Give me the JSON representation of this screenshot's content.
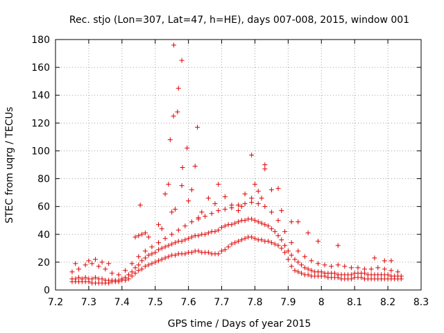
{
  "chart_data": {
    "type": "scatter",
    "title": "Rec. stjo (Lon=307, Lat=47, h=HE), days 007-008, 2015, window 001",
    "xlabel": "GPS time / Days of year 2015",
    "ylabel": "STEC from uqrg / TECUs",
    "xlim": [
      7.2,
      8.3
    ],
    "ylim": [
      0,
      180
    ],
    "xticks": [
      "7.2",
      "7.3",
      "7.4",
      "7.5",
      "7.6",
      "7.7",
      "7.8",
      "7.9",
      "8",
      "8.1",
      "8.2",
      "8.3"
    ],
    "yticks": [
      "0",
      "20",
      "40",
      "60",
      "80",
      "100",
      "120",
      "140",
      "160",
      "180"
    ],
    "grid": true,
    "marker": "plus",
    "color": "#dd0000",
    "series": [
      {
        "points": [
          [
            7.25,
            6
          ],
          [
            7.26,
            6
          ],
          [
            7.27,
            6
          ],
          [
            7.28,
            6
          ],
          [
            7.29,
            6
          ],
          [
            7.3,
            6
          ],
          [
            7.31,
            5
          ],
          [
            7.32,
            5
          ],
          [
            7.33,
            5
          ],
          [
            7.34,
            5
          ],
          [
            7.35,
            5
          ],
          [
            7.36,
            5
          ],
          [
            7.37,
            6
          ],
          [
            7.38,
            6
          ],
          [
            7.39,
            6
          ],
          [
            7.4,
            7
          ],
          [
            7.41,
            7
          ],
          [
            7.42,
            8
          ],
          [
            7.43,
            10
          ],
          [
            7.44,
            12
          ],
          [
            7.45,
            14
          ],
          [
            7.46,
            15
          ],
          [
            7.47,
            17
          ],
          [
            7.48,
            18
          ],
          [
            7.49,
            19
          ],
          [
            7.5,
            20
          ],
          [
            7.51,
            21
          ],
          [
            7.52,
            22
          ],
          [
            7.53,
            23
          ],
          [
            7.54,
            24
          ],
          [
            7.55,
            25
          ],
          [
            7.56,
            25
          ],
          [
            7.57,
            26
          ],
          [
            7.58,
            26
          ],
          [
            7.59,
            26
          ],
          [
            7.6,
            27
          ],
          [
            7.61,
            27
          ],
          [
            7.62,
            28
          ],
          [
            7.63,
            28
          ],
          [
            7.64,
            27
          ],
          [
            7.65,
            27
          ],
          [
            7.66,
            27
          ],
          [
            7.67,
            26
          ],
          [
            7.68,
            26
          ],
          [
            7.69,
            26
          ],
          [
            7.7,
            28
          ],
          [
            7.71,
            29
          ],
          [
            7.72,
            31
          ],
          [
            7.73,
            33
          ],
          [
            7.74,
            34
          ],
          [
            7.75,
            35
          ],
          [
            7.76,
            36
          ],
          [
            7.77,
            37
          ],
          [
            7.78,
            38
          ],
          [
            7.79,
            38
          ],
          [
            7.8,
            37
          ],
          [
            7.81,
            36
          ],
          [
            7.82,
            36
          ],
          [
            7.83,
            35
          ],
          [
            7.84,
            35
          ],
          [
            7.85,
            34
          ],
          [
            7.86,
            33
          ],
          [
            7.87,
            32
          ],
          [
            7.88,
            30
          ],
          [
            7.89,
            27
          ],
          [
            7.9,
            22
          ],
          [
            7.91,
            17
          ],
          [
            7.92,
            14
          ],
          [
            7.93,
            13
          ],
          [
            7.94,
            12
          ],
          [
            7.95,
            11
          ],
          [
            7.96,
            11
          ],
          [
            7.97,
            10
          ],
          [
            7.98,
            10
          ],
          [
            7.99,
            10
          ],
          [
            8.0,
            10
          ],
          [
            8.01,
            10
          ],
          [
            8.02,
            9
          ],
          [
            8.03,
            9
          ],
          [
            8.04,
            9
          ],
          [
            8.05,
            9
          ],
          [
            8.06,
            8
          ],
          [
            8.07,
            8
          ],
          [
            8.08,
            8
          ],
          [
            8.09,
            8
          ],
          [
            8.1,
            9
          ],
          [
            8.11,
            9
          ],
          [
            8.12,
            9
          ],
          [
            8.13,
            8
          ],
          [
            8.14,
            8
          ],
          [
            8.15,
            8
          ],
          [
            8.16,
            8
          ],
          [
            8.17,
            8
          ],
          [
            8.18,
            8
          ],
          [
            8.19,
            8
          ],
          [
            8.2,
            8
          ],
          [
            8.21,
            8
          ],
          [
            8.22,
            8
          ],
          [
            8.23,
            8
          ],
          [
            8.24,
            8
          ]
        ]
      },
      {
        "points": [
          [
            7.25,
            8
          ],
          [
            7.26,
            8
          ],
          [
            7.27,
            9
          ],
          [
            7.28,
            8
          ],
          [
            7.29,
            9
          ],
          [
            7.3,
            8
          ],
          [
            7.31,
            8
          ],
          [
            7.32,
            9
          ],
          [
            7.33,
            8
          ],
          [
            7.34,
            8
          ],
          [
            7.35,
            7
          ],
          [
            7.36,
            7
          ],
          [
            7.37,
            7
          ],
          [
            7.38,
            7
          ],
          [
            7.39,
            7
          ],
          [
            7.4,
            8
          ],
          [
            7.41,
            9
          ],
          [
            7.42,
            11
          ],
          [
            7.43,
            13
          ],
          [
            7.44,
            16
          ],
          [
            7.45,
            18
          ],
          [
            7.46,
            21
          ],
          [
            7.47,
            23
          ],
          [
            7.48,
            25
          ],
          [
            7.49,
            26
          ],
          [
            7.5,
            27
          ],
          [
            7.51,
            29
          ],
          [
            7.52,
            30
          ],
          [
            7.53,
            31
          ],
          [
            7.54,
            32
          ],
          [
            7.55,
            33
          ],
          [
            7.56,
            34
          ],
          [
            7.57,
            35
          ],
          [
            7.58,
            35
          ],
          [
            7.59,
            36
          ],
          [
            7.6,
            37
          ],
          [
            7.61,
            38
          ],
          [
            7.62,
            39
          ],
          [
            7.63,
            39
          ],
          [
            7.64,
            40
          ],
          [
            7.65,
            40
          ],
          [
            7.66,
            41
          ],
          [
            7.67,
            42
          ],
          [
            7.68,
            42
          ],
          [
            7.69,
            43
          ],
          [
            7.7,
            45
          ],
          [
            7.71,
            46
          ],
          [
            7.72,
            47
          ],
          [
            7.73,
            47
          ],
          [
            7.74,
            48
          ],
          [
            7.75,
            49
          ],
          [
            7.76,
            50
          ],
          [
            7.77,
            50
          ],
          [
            7.78,
            51
          ],
          [
            7.79,
            51
          ],
          [
            7.8,
            50
          ],
          [
            7.81,
            49
          ],
          [
            7.82,
            48
          ],
          [
            7.83,
            47
          ],
          [
            7.84,
            46
          ],
          [
            7.85,
            44
          ],
          [
            7.86,
            42
          ],
          [
            7.87,
            39
          ],
          [
            7.88,
            36
          ],
          [
            7.89,
            32
          ],
          [
            7.9,
            28
          ],
          [
            7.91,
            25
          ],
          [
            7.92,
            22
          ],
          [
            7.93,
            20
          ],
          [
            7.94,
            18
          ],
          [
            7.95,
            16
          ],
          [
            7.96,
            15
          ],
          [
            7.97,
            14
          ],
          [
            7.98,
            13
          ],
          [
            7.99,
            13
          ],
          [
            8.0,
            13
          ],
          [
            8.01,
            12
          ],
          [
            8.02,
            12
          ],
          [
            8.03,
            12
          ],
          [
            8.04,
            12
          ],
          [
            8.05,
            11
          ],
          [
            8.06,
            11
          ],
          [
            8.07,
            11
          ],
          [
            8.08,
            11
          ],
          [
            8.09,
            11
          ],
          [
            8.1,
            12
          ],
          [
            8.11,
            12
          ],
          [
            8.12,
            12
          ],
          [
            8.13,
            12
          ],
          [
            8.14,
            11
          ],
          [
            8.15,
            11
          ],
          [
            8.16,
            11
          ],
          [
            8.17,
            11
          ],
          [
            8.18,
            11
          ],
          [
            8.19,
            11
          ],
          [
            8.2,
            11
          ],
          [
            8.21,
            10
          ],
          [
            8.22,
            10
          ],
          [
            8.23,
            10
          ],
          [
            8.24,
            10
          ]
        ]
      },
      {
        "points": [
          [
            7.25,
            13
          ],
          [
            7.27,
            15
          ],
          [
            7.29,
            18
          ],
          [
            7.31,
            19
          ],
          [
            7.33,
            17
          ],
          [
            7.35,
            15
          ],
          [
            7.37,
            12
          ],
          [
            7.39,
            11
          ],
          [
            7.41,
            14
          ],
          [
            7.43,
            19
          ],
          [
            7.45,
            24
          ],
          [
            7.47,
            28
          ],
          [
            7.49,
            31
          ],
          [
            7.51,
            34
          ],
          [
            7.53,
            37
          ],
          [
            7.55,
            40
          ],
          [
            7.57,
            43
          ],
          [
            7.59,
            46
          ],
          [
            7.61,
            49
          ],
          [
            7.63,
            51
          ],
          [
            7.65,
            53
          ],
          [
            7.67,
            55
          ],
          [
            7.69,
            57
          ],
          [
            7.71,
            58
          ],
          [
            7.73,
            59
          ],
          [
            7.75,
            61
          ],
          [
            7.77,
            62
          ],
          [
            7.79,
            63
          ],
          [
            7.81,
            62
          ],
          [
            7.83,
            60
          ],
          [
            7.85,
            56
          ],
          [
            7.87,
            50
          ],
          [
            7.89,
            42
          ],
          [
            7.91,
            34
          ],
          [
            7.93,
            28
          ],
          [
            7.95,
            24
          ],
          [
            7.97,
            21
          ],
          [
            7.99,
            19
          ],
          [
            8.01,
            18
          ],
          [
            8.03,
            17
          ],
          [
            8.05,
            18
          ],
          [
            8.07,
            17
          ],
          [
            8.09,
            16
          ],
          [
            8.11,
            16
          ],
          [
            8.13,
            15
          ],
          [
            8.15,
            15
          ],
          [
            8.17,
            16
          ],
          [
            8.19,
            15
          ],
          [
            8.21,
            14
          ],
          [
            8.23,
            13
          ]
        ]
      },
      {
        "points": [
          [
            7.26,
            19
          ],
          [
            7.3,
            21
          ],
          [
            7.32,
            22
          ],
          [
            7.34,
            20
          ],
          [
            7.36,
            19
          ],
          [
            7.44,
            38
          ],
          [
            7.45,
            39
          ],
          [
            7.46,
            40
          ],
          [
            7.47,
            41
          ],
          [
            7.48,
            38
          ],
          [
            7.51,
            47
          ],
          [
            7.52,
            44
          ],
          [
            7.53,
            69
          ],
          [
            7.54,
            76
          ],
          [
            7.55,
            56
          ],
          [
            7.56,
            58
          ],
          [
            7.58,
            75
          ],
          [
            7.6,
            64
          ],
          [
            7.61,
            72
          ],
          [
            7.62,
            89
          ],
          [
            7.63,
            52
          ],
          [
            7.64,
            56
          ],
          [
            7.66,
            66
          ],
          [
            7.68,
            62
          ],
          [
            7.69,
            76
          ],
          [
            7.71,
            67
          ],
          [
            7.73,
            61
          ],
          [
            7.75,
            57
          ],
          [
            7.76,
            60
          ],
          [
            7.77,
            69
          ],
          [
            7.79,
            66
          ],
          [
            7.8,
            76
          ],
          [
            7.81,
            71
          ],
          [
            7.82,
            66
          ],
          [
            7.83,
            87
          ],
          [
            7.83,
            90
          ],
          [
            7.85,
            72
          ],
          [
            7.87,
            73
          ],
          [
            7.88,
            57
          ],
          [
            7.91,
            49
          ],
          [
            7.93,
            49
          ],
          [
            7.96,
            41
          ],
          [
            7.99,
            35
          ],
          [
            8.05,
            32
          ],
          [
            8.16,
            23
          ],
          [
            8.19,
            21
          ],
          [
            8.21,
            21
          ]
        ]
      },
      {
        "points": [
          [
            7.455,
            61
          ],
          [
            7.545,
            108
          ],
          [
            7.555,
            125
          ],
          [
            7.556,
            176
          ],
          [
            7.567,
            128
          ],
          [
            7.57,
            145
          ],
          [
            7.58,
            165
          ],
          [
            7.582,
            88
          ],
          [
            7.596,
            102
          ],
          [
            7.627,
            117
          ],
          [
            7.79,
            97
          ]
        ]
      }
    ]
  }
}
